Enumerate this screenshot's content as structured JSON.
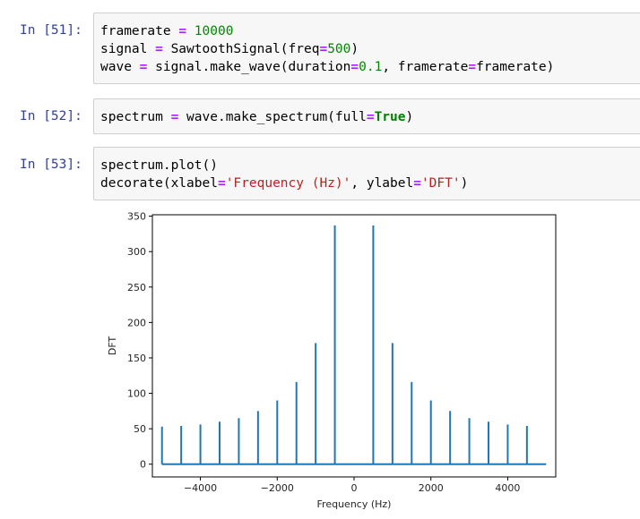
{
  "cells": [
    {
      "prompt": "In [51]:",
      "lines": [
        [
          {
            "t": "n",
            "v": "framerate "
          },
          {
            "t": "o",
            "v": "="
          },
          {
            "t": "n",
            "v": " "
          },
          {
            "t": "num",
            "v": "10000"
          }
        ],
        [
          {
            "t": "n",
            "v": "signal "
          },
          {
            "t": "o",
            "v": "="
          },
          {
            "t": "n",
            "v": " SawtoothSignal(freq"
          },
          {
            "t": "o",
            "v": "="
          },
          {
            "t": "num",
            "v": "500"
          },
          {
            "t": "n",
            "v": ")"
          }
        ],
        [
          {
            "t": "n",
            "v": "wave "
          },
          {
            "t": "o",
            "v": "="
          },
          {
            "t": "n",
            "v": " signal.make_wave(duration"
          },
          {
            "t": "o",
            "v": "="
          },
          {
            "t": "num",
            "v": "0.1"
          },
          {
            "t": "n",
            "v": ", framerate"
          },
          {
            "t": "o",
            "v": "="
          },
          {
            "t": "n",
            "v": "framerate)"
          }
        ]
      ]
    },
    {
      "prompt": "In [52]:",
      "lines": [
        [
          {
            "t": "n",
            "v": "spectrum "
          },
          {
            "t": "o",
            "v": "="
          },
          {
            "t": "n",
            "v": " wave.make_spectrum(full"
          },
          {
            "t": "o",
            "v": "="
          },
          {
            "t": "k",
            "v": "True"
          },
          {
            "t": "n",
            "v": ")"
          }
        ]
      ]
    },
    {
      "prompt": "In [53]:",
      "lines": [
        [
          {
            "t": "n",
            "v": "spectrum.plot()"
          }
        ],
        [
          {
            "t": "n",
            "v": "decorate(xlabel"
          },
          {
            "t": "o",
            "v": "="
          },
          {
            "t": "s",
            "v": "'Frequency (Hz)'"
          },
          {
            "t": "n",
            "v": ", ylabel"
          },
          {
            "t": "o",
            "v": "="
          },
          {
            "t": "s",
            "v": "'DFT'"
          },
          {
            "t": "n",
            "v": ")"
          }
        ]
      ]
    }
  ],
  "chart_data": {
    "type": "line",
    "xlabel": "Frequency (Hz)",
    "ylabel": "DFT",
    "xlim": [
      -5250,
      5250
    ],
    "ylim": [
      -18,
      352
    ],
    "x_ticks": [
      -4000,
      -2000,
      0,
      2000,
      4000
    ],
    "x_tick_labels": [
      "−4000",
      "−2000",
      "0",
      "2000",
      "4000"
    ],
    "y_ticks": [
      0,
      50,
      100,
      150,
      200,
      250,
      300,
      350
    ],
    "y_tick_labels": [
      "0",
      "50",
      "100",
      "150",
      "200",
      "250",
      "300",
      "350"
    ],
    "grid": false,
    "line_color": "#1f77b4",
    "baseline_x_range": [
      -5000,
      5000
    ],
    "spikes": {
      "x": [
        -5000,
        -4500,
        -4000,
        -3500,
        -3000,
        -2500,
        -2000,
        -1500,
        -1000,
        -500,
        500,
        1000,
        1500,
        2000,
        2500,
        3000,
        3500,
        4000,
        4500
      ],
      "y": [
        53,
        54,
        56,
        60,
        65,
        75,
        90,
        116,
        171,
        337,
        337,
        171,
        116,
        90,
        75,
        65,
        60,
        56,
        54
      ]
    }
  }
}
